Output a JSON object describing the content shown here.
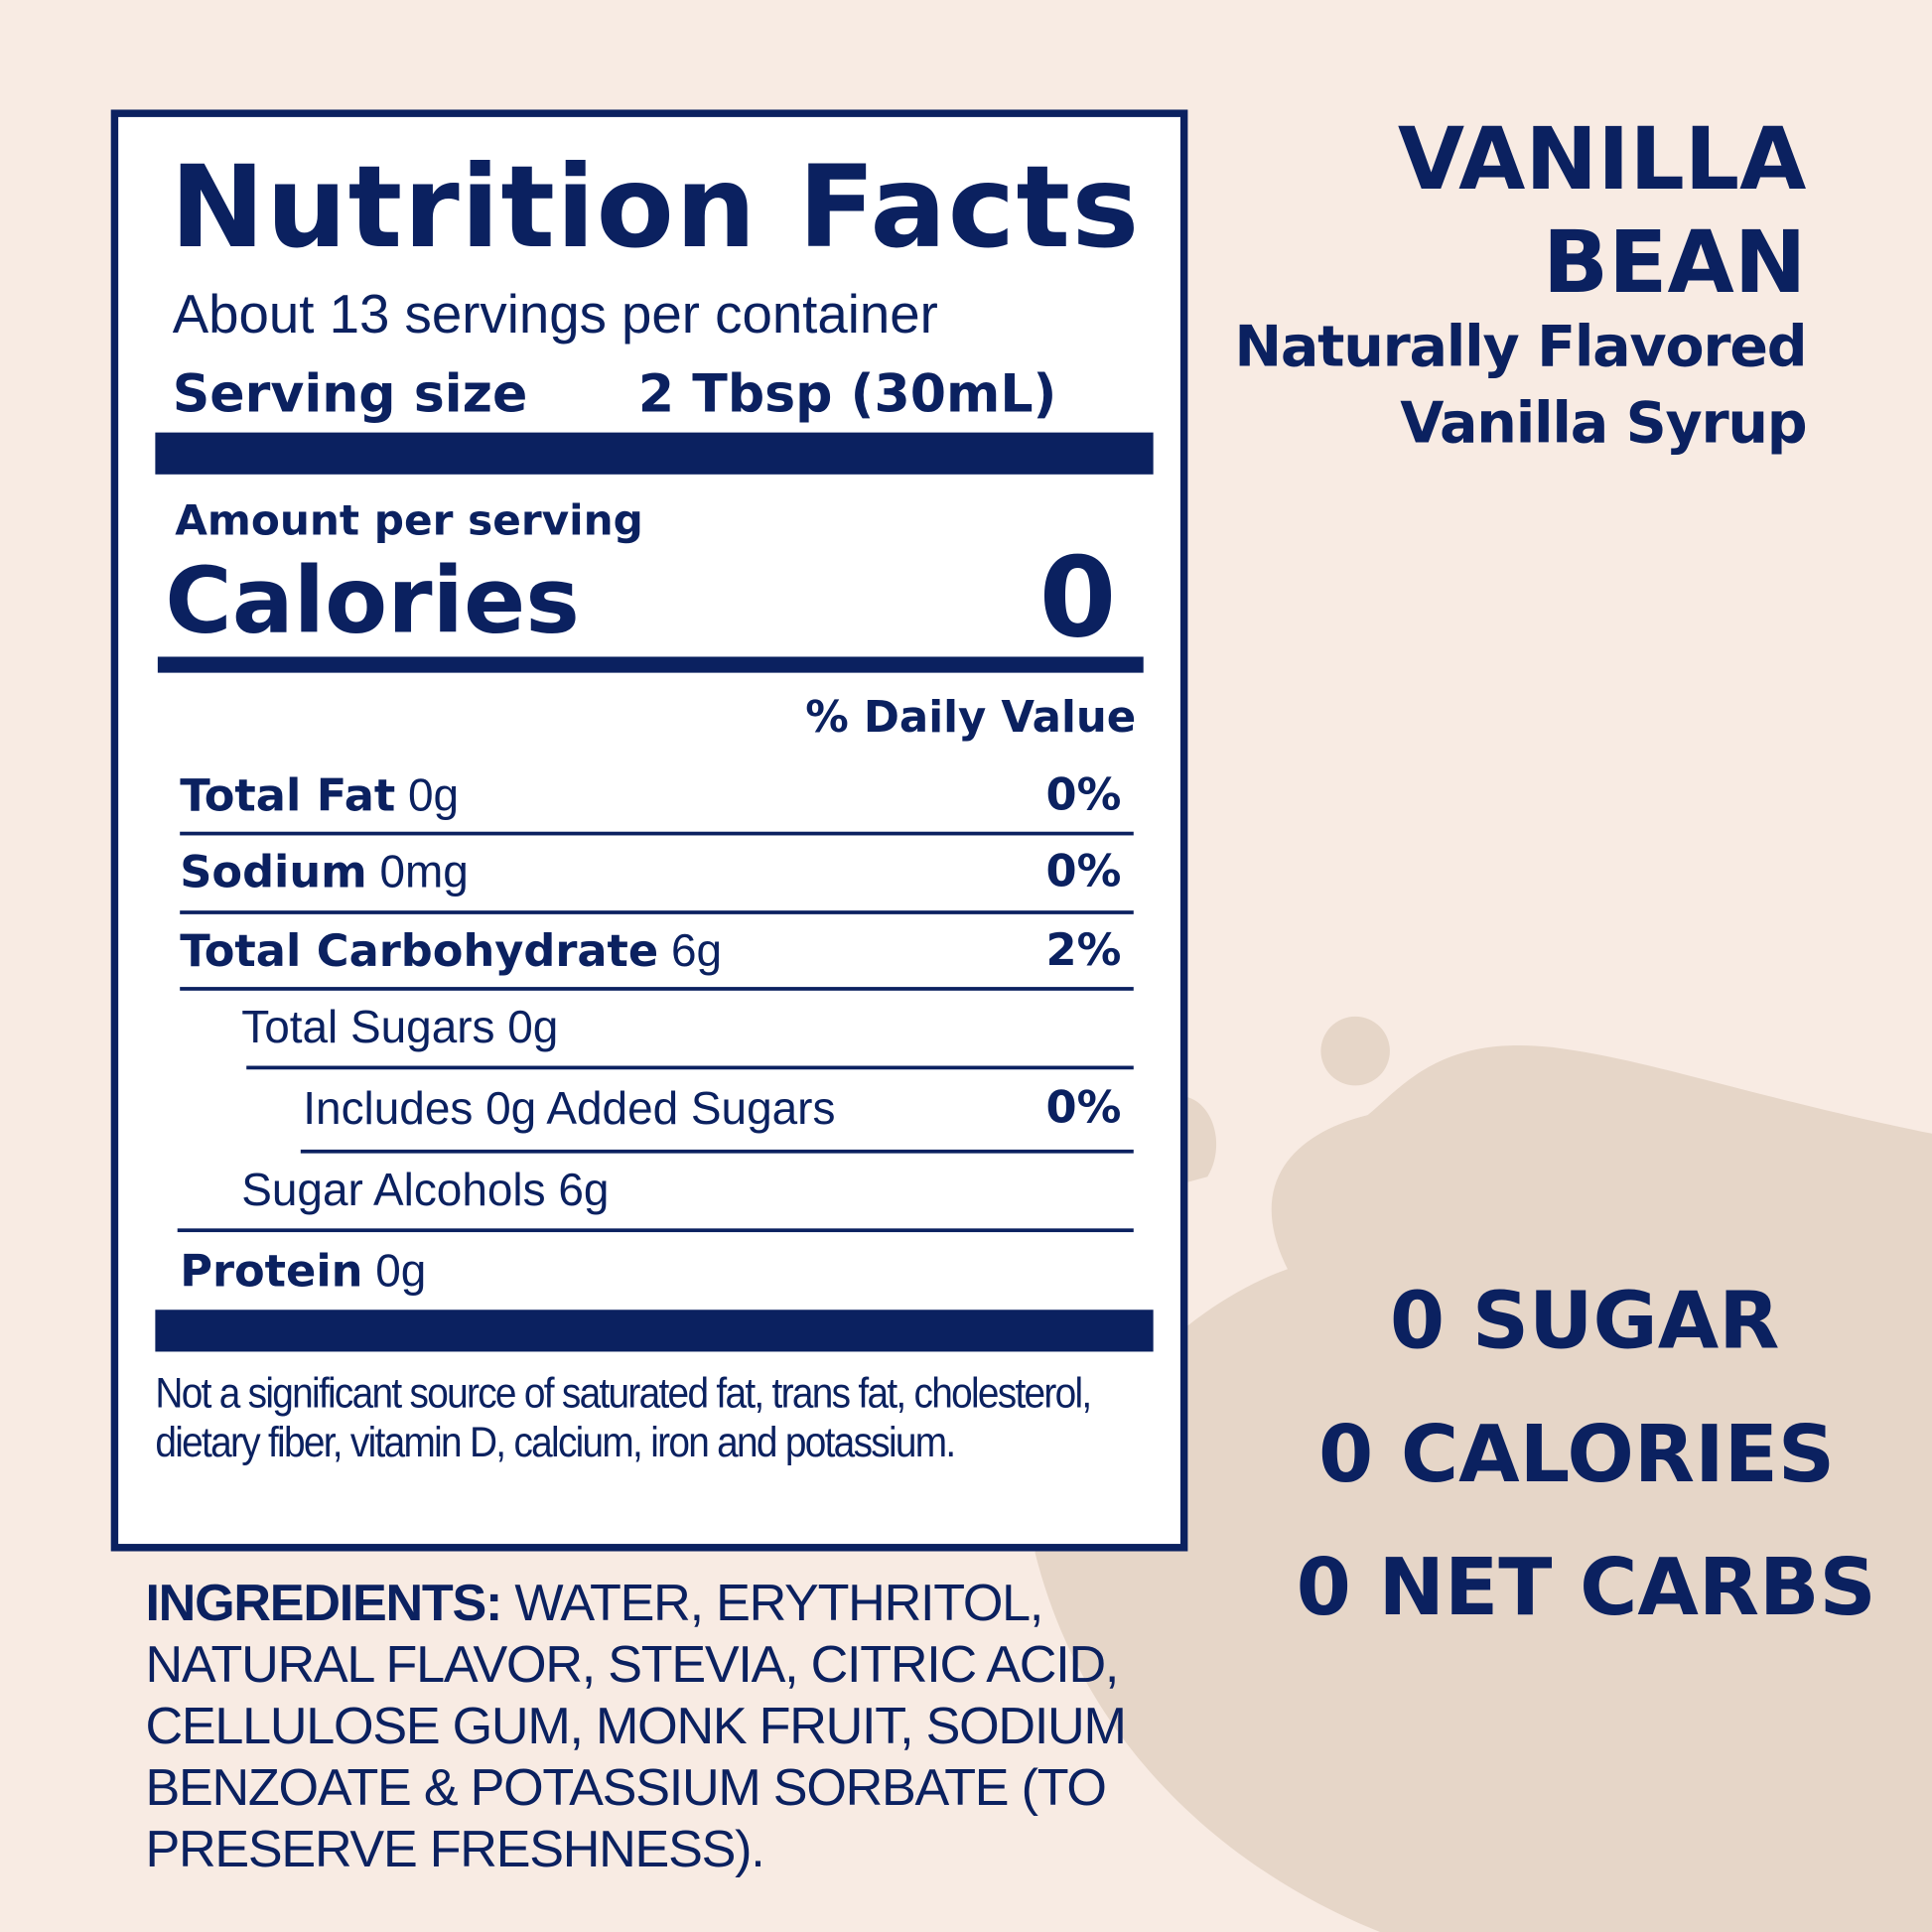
{
  "colors": {
    "navy": "#0b2160",
    "background": "#f8ebe3",
    "splash": "#e6d6c8"
  },
  "label": {
    "title": "Nutrition Facts",
    "servings": "About 13 servings per container",
    "serving_size_label": "Serving size",
    "serving_size_value": "2 Tbsp (30mL)",
    "amount_per_serving": "Amount per serving",
    "calories_label": "Calories",
    "calories_value": "0",
    "daily_value_header": "% Daily Value",
    "rows": [
      {
        "name": "Total Fat",
        "amount": "0g",
        "dv": "0%"
      },
      {
        "name": "Sodium",
        "amount": "0mg",
        "dv": "0%"
      },
      {
        "name": "Total Carbohydrate",
        "amount": "6g",
        "dv": "2%"
      },
      {
        "name": "Total Sugars 0g",
        "amount": "",
        "dv": ""
      },
      {
        "name": "Includes 0g Added Sugars",
        "amount": "",
        "dv": "0%"
      },
      {
        "name": "Sugar Alcohols 6g",
        "amount": "",
        "dv": ""
      },
      {
        "name": "Protein",
        "amount": "0g",
        "dv": ""
      }
    ],
    "footnote": "Not a significant source of saturated fat, trans fat, cholesterol, dietary fiber, vitamin D, calcium, iron and potassium."
  },
  "ingredients": {
    "label": "INGREDIENTS:",
    "text": " WATER, ERYTHRITOL, NATURAL FLAVOR, STEVIA, CITRIC ACID, CELLULOSE GUM, MONK FRUIT, SODIUM BENZOATE & POTASSIUM SORBATE (TO PRESERVE FRESHNESS)."
  },
  "product": {
    "line1": "VANILLA",
    "line2": "BEAN",
    "line3": "Naturally Flavored",
    "line4": "Vanilla Syrup"
  },
  "claims": [
    "0 SUGAR",
    "0 CALORIES",
    "0 NET CARBS"
  ]
}
